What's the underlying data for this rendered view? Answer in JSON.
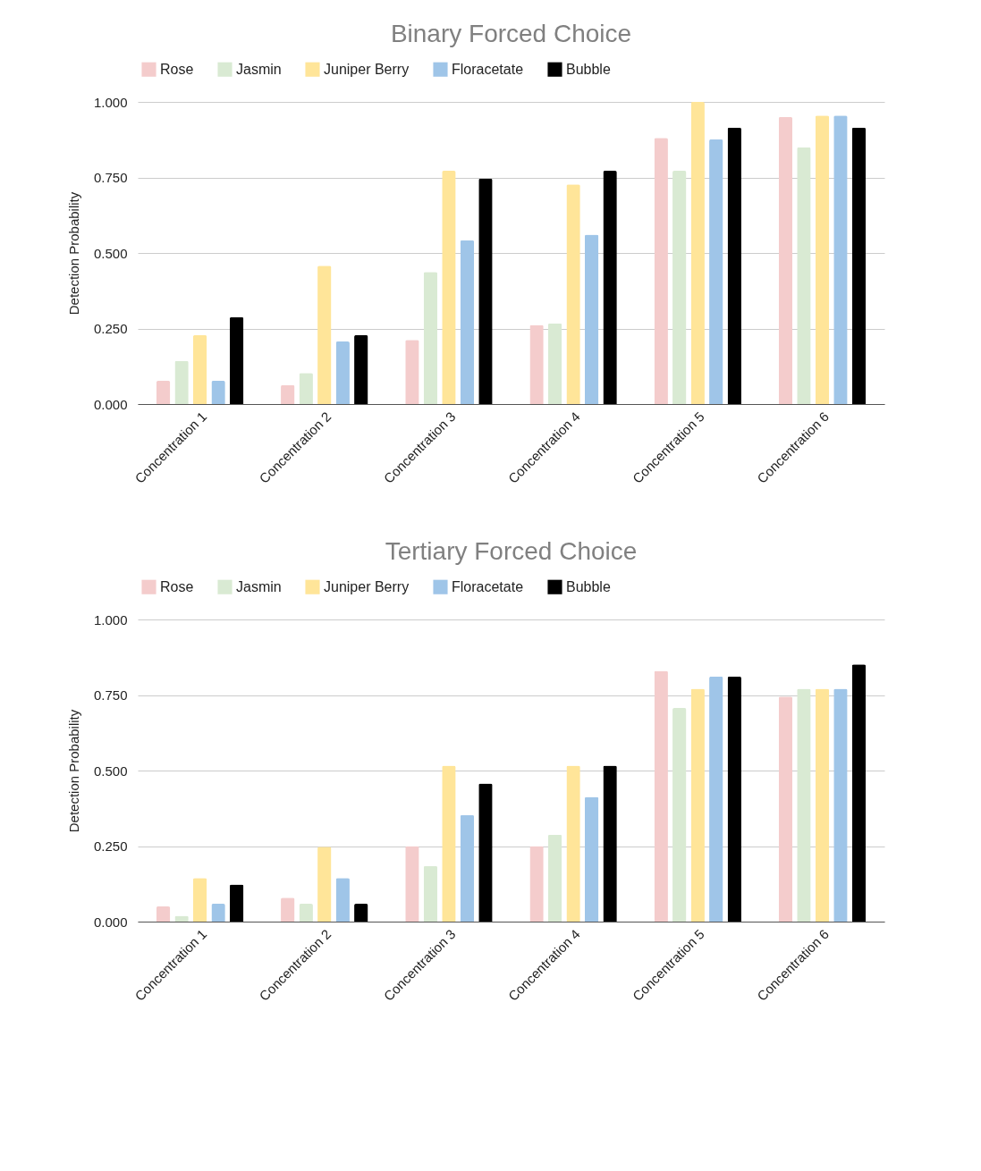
{
  "chart_data": [
    {
      "type": "bar",
      "title": "Binary Forced Choice",
      "ylabel": "Detection Probability",
      "categories": [
        "Concentration 1",
        "Concentration 2",
        "Concentration 3",
        "Concentration 4",
        "Concentration 5",
        "Concentration 6"
      ],
      "series": [
        {
          "name": "Rose",
          "color": "#f4cccc",
          "values": [
            0.077,
            0.063,
            0.212,
            0.262,
            0.881,
            0.95
          ]
        },
        {
          "name": "Jasmin",
          "color": "#d9ead3",
          "values": [
            0.143,
            0.103,
            0.437,
            0.267,
            0.772,
            0.85
          ]
        },
        {
          "name": "Juniper Berry",
          "color": "#ffe599",
          "values": [
            0.228,
            0.458,
            0.772,
            0.727,
            1.0,
            0.955
          ]
        },
        {
          "name": "Floracetate",
          "color": "#9fc5e8",
          "values": [
            0.077,
            0.207,
            0.542,
            0.561,
            0.876,
            0.955
          ]
        },
        {
          "name": "Bubble",
          "color": "#000000",
          "values": [
            0.288,
            0.228,
            0.746,
            0.772,
            0.915,
            0.915
          ]
        }
      ],
      "ylim": [
        0,
        1
      ],
      "yticks": [
        {
          "value": 0,
          "label": "0.000"
        },
        {
          "value": 0.25,
          "label": "0.250"
        },
        {
          "value": 0.5,
          "label": "0.500"
        },
        {
          "value": 0.75,
          "label": "0.750"
        },
        {
          "value": 1,
          "label": "1.000"
        }
      ],
      "grid": "y",
      "legend": "top"
    },
    {
      "type": "bar",
      "title": "Tertiary Forced Choice",
      "ylabel": "Detection Probability",
      "categories": [
        "Concentration 1",
        "Concentration 2",
        "Concentration 3",
        "Concentration 4",
        "Concentration 5",
        "Concentration 6"
      ],
      "series": [
        {
          "name": "Rose",
          "color": "#f4cccc",
          "values": [
            0.05,
            0.079,
            0.25,
            0.25,
            0.83,
            0.745
          ]
        },
        {
          "name": "Jasmin",
          "color": "#d9ead3",
          "values": [
            0.019,
            0.059,
            0.184,
            0.288,
            0.707,
            0.771
          ]
        },
        {
          "name": "Juniper Berry",
          "color": "#ffe599",
          "values": [
            0.144,
            0.248,
            0.516,
            0.516,
            0.771,
            0.771
          ]
        },
        {
          "name": "Floracetate",
          "color": "#9fc5e8",
          "values": [
            0.059,
            0.144,
            0.353,
            0.413,
            0.811,
            0.771
          ]
        },
        {
          "name": "Bubble",
          "color": "#000000",
          "values": [
            0.123,
            0.059,
            0.457,
            0.516,
            0.811,
            0.851
          ]
        }
      ],
      "ylim": [
        0,
        1
      ],
      "yticks": [
        {
          "value": 0,
          "label": "0.000"
        },
        {
          "value": 0.25,
          "label": "0.250"
        },
        {
          "value": 0.5,
          "label": "0.500"
        },
        {
          "value": 0.75,
          "label": "0.750"
        },
        {
          "value": 1,
          "label": "1.000"
        }
      ],
      "grid": "y",
      "legend": "top"
    }
  ]
}
